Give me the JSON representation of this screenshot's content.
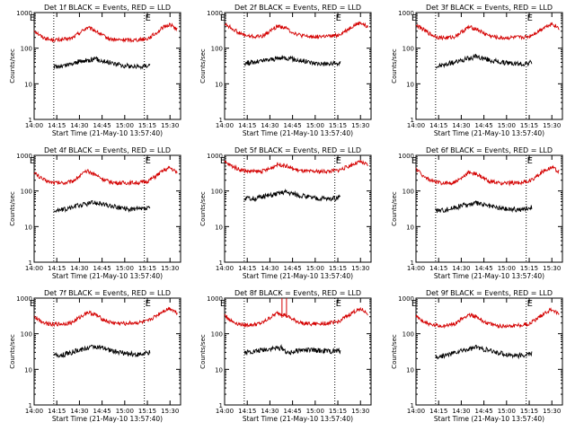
{
  "figure": {
    "background": "#ffffff"
  },
  "chart_data": [
    {
      "type": "line",
      "title": "Det 1f BLACK = Events, RED = LLD",
      "xlabel": "Start Time (21-May-10 13:57:40)",
      "ylabel": "Counts/sec",
      "yscale": "log",
      "ylim": [
        1,
        1000
      ],
      "x_ticks": [
        "14:00",
        "14:15",
        "14:30",
        "14:45",
        "15:00",
        "15:15",
        "15:30"
      ],
      "y_ticks": [
        "1",
        "10",
        "100",
        "1000"
      ],
      "markers": [
        "E",
        "E"
      ],
      "vlines": [
        "14:13",
        "15:13"
      ],
      "series": [
        {
          "color": "#d40000",
          "x": [
            "14:00",
            "14:05",
            "14:10",
            "14:15",
            "14:20",
            "14:25",
            "14:30",
            "14:35",
            "14:40",
            "14:45",
            "14:50",
            "14:55",
            "15:00",
            "15:05",
            "15:10",
            "15:15",
            "15:20",
            "15:25",
            "15:30",
            "15:35"
          ],
          "values": [
            320,
            210,
            175,
            170,
            175,
            190,
            270,
            380,
            320,
            230,
            180,
            170,
            172,
            170,
            175,
            185,
            250,
            370,
            470,
            330
          ]
        },
        {
          "color": "#000000",
          "x": [
            "14:13",
            "14:20",
            "14:30",
            "14:40",
            "14:50",
            "15:00",
            "15:10",
            "15:17"
          ],
          "values": [
            30,
            32,
            42,
            50,
            40,
            32,
            30,
            35
          ]
        }
      ]
    },
    {
      "type": "line",
      "title": "Det 2f BLACK = Events, RED = LLD",
      "xlabel": "Start Time (21-May-10 13:57:40)",
      "ylabel": "Counts/sec",
      "yscale": "log",
      "ylim": [
        1,
        1000
      ],
      "x_ticks": [
        "14:00",
        "14:15",
        "14:30",
        "14:45",
        "15:00",
        "15:15",
        "15:30"
      ],
      "y_ticks": [
        "1",
        "10",
        "100",
        "1000"
      ],
      "markers": [
        "E",
        "E"
      ],
      "vlines": [
        "14:13",
        "15:13"
      ],
      "series": [
        {
          "color": "#d40000",
          "x": [
            "14:00",
            "14:05",
            "14:10",
            "14:15",
            "14:20",
            "14:25",
            "14:30",
            "14:35",
            "14:40",
            "14:45",
            "14:50",
            "14:55",
            "15:00",
            "15:05",
            "15:10",
            "15:15",
            "15:20",
            "15:25",
            "15:30",
            "15:35"
          ],
          "values": [
            480,
            360,
            260,
            220,
            210,
            220,
            300,
            420,
            380,
            280,
            230,
            210,
            210,
            215,
            215,
            230,
            300,
            420,
            520,
            380
          ]
        },
        {
          "color": "#000000",
          "x": [
            "14:13",
            "14:20",
            "14:30",
            "14:40",
            "14:50",
            "15:00",
            "15:10",
            "15:17"
          ],
          "values": [
            38,
            40,
            48,
            55,
            45,
            38,
            36,
            38
          ]
        }
      ]
    },
    {
      "type": "line",
      "title": "Det 3f BLACK = Events, RED = LLD",
      "xlabel": "Start Time (21-May-10 13:57:40)",
      "ylabel": "Counts/sec",
      "yscale": "log",
      "ylim": [
        1,
        1000
      ],
      "x_ticks": [
        "14:00",
        "14:15",
        "14:30",
        "14:45",
        "15:00",
        "15:15",
        "15:30"
      ],
      "y_ticks": [
        "1",
        "10",
        "100",
        "1000"
      ],
      "markers": [
        "E",
        "E"
      ],
      "vlines": [
        "14:13",
        "15:13"
      ],
      "series": [
        {
          "color": "#d40000",
          "x": [
            "14:00",
            "14:05",
            "14:10",
            "14:15",
            "14:20",
            "14:25",
            "14:30",
            "14:35",
            "14:40",
            "14:45",
            "14:50",
            "14:55",
            "15:00",
            "15:05",
            "15:10",
            "15:15",
            "15:20",
            "15:25",
            "15:30",
            "15:35"
          ],
          "values": [
            450,
            330,
            240,
            200,
            195,
            205,
            280,
            390,
            350,
            260,
            215,
            195,
            195,
            200,
            200,
            215,
            280,
            390,
            490,
            360
          ]
        },
        {
          "color": "#000000",
          "x": [
            "14:13",
            "14:20",
            "14:30",
            "14:40",
            "14:50",
            "15:00",
            "15:10",
            "15:17"
          ],
          "values": [
            30,
            35,
            45,
            58,
            45,
            38,
            36,
            40
          ]
        }
      ]
    },
    {
      "type": "line",
      "title": "Det 4f BLACK = Events, RED = LLD",
      "xlabel": "Start Time (21-May-10 13:57:40)",
      "ylabel": "Counts/sec",
      "yscale": "log",
      "ylim": [
        1,
        1000
      ],
      "x_ticks": [
        "14:00",
        "14:15",
        "14:30",
        "14:45",
        "15:00",
        "15:15",
        "15:30"
      ],
      "y_ticks": [
        "1",
        "10",
        "100",
        "1000"
      ],
      "markers": [
        "E",
        "E"
      ],
      "vlines": [
        "14:13",
        "15:13"
      ],
      "series": [
        {
          "color": "#d40000",
          "x": [
            "14:00",
            "14:05",
            "14:10",
            "14:15",
            "14:20",
            "14:25",
            "14:30",
            "14:35",
            "14:40",
            "14:45",
            "14:50",
            "14:55",
            "15:00",
            "15:05",
            "15:10",
            "15:15",
            "15:20",
            "15:25",
            "15:30",
            "15:35"
          ],
          "values": [
            330,
            220,
            180,
            170,
            170,
            185,
            260,
            360,
            300,
            220,
            180,
            168,
            168,
            170,
            172,
            185,
            250,
            360,
            450,
            320
          ]
        },
        {
          "color": "#000000",
          "x": [
            "14:13",
            "14:20",
            "14:30",
            "14:40",
            "14:50",
            "15:00",
            "15:10",
            "15:17"
          ],
          "values": [
            28,
            30,
            40,
            48,
            38,
            32,
            30,
            33
          ]
        }
      ]
    },
    {
      "type": "line",
      "title": "Det 5f BLACK = Events, RED = LLD",
      "xlabel": "Start Time (21-May-10 13:57:40)",
      "ylabel": "Counts/sec",
      "yscale": "log",
      "ylim": [
        1,
        1000
      ],
      "x_ticks": [
        "14:00",
        "14:15",
        "14:30",
        "14:45",
        "15:00",
        "15:15",
        "15:30"
      ],
      "y_ticks": [
        "1",
        "10",
        "100",
        "1000"
      ],
      "markers": [
        "E",
        "E"
      ],
      "vlines": [
        "14:13",
        "15:13"
      ],
      "series": [
        {
          "color": "#d40000",
          "x": [
            "14:00",
            "14:05",
            "14:10",
            "14:15",
            "14:20",
            "14:25",
            "14:30",
            "14:35",
            "14:40",
            "14:45",
            "14:50",
            "14:55",
            "15:00",
            "15:05",
            "15:10",
            "15:15",
            "15:20",
            "15:25",
            "15:30",
            "15:35"
          ],
          "values": [
            640,
            500,
            400,
            360,
            350,
            360,
            420,
            560,
            520,
            420,
            370,
            350,
            350,
            355,
            360,
            380,
            450,
            560,
            660,
            520
          ]
        },
        {
          "color": "#000000",
          "x": [
            "14:13",
            "14:20",
            "14:30",
            "14:40",
            "14:50",
            "15:00",
            "15:10",
            "15:17"
          ],
          "values": [
            60,
            62,
            75,
            95,
            75,
            62,
            60,
            65
          ]
        }
      ]
    },
    {
      "type": "line",
      "title": "Det 6f BLACK = Events, RED = LLD",
      "xlabel": "Start Time (21-May-10 13:57:40)",
      "ylabel": "Counts/sec",
      "yscale": "log",
      "ylim": [
        1,
        1000
      ],
      "x_ticks": [
        "14:00",
        "14:15",
        "14:30",
        "14:45",
        "15:00",
        "15:15",
        "15:30"
      ],
      "y_ticks": [
        "1",
        "10",
        "100",
        "1000"
      ],
      "markers": [
        "E",
        "E"
      ],
      "vlines": [
        "14:13",
        "15:13"
      ],
      "series": [
        {
          "color": "#d40000",
          "x": [
            "14:00",
            "14:05",
            "14:10",
            "14:15",
            "14:20",
            "14:25",
            "14:30",
            "14:35",
            "14:40",
            "14:45",
            "14:50",
            "14:55",
            "15:00",
            "15:05",
            "15:10",
            "15:15",
            "15:20",
            "15:25",
            "15:30",
            "15:35"
          ],
          "values": [
            420,
            260,
            190,
            170,
            168,
            172,
            220,
            340,
            300,
            220,
            180,
            165,
            165,
            170,
            172,
            185,
            260,
            380,
            470,
            340
          ]
        },
        {
          "color": "#000000",
          "x": [
            "14:13",
            "14:20",
            "14:30",
            "14:40",
            "14:50",
            "15:00",
            "15:10",
            "15:17"
          ],
          "values": [
            28,
            30,
            38,
            45,
            36,
            31,
            30,
            36
          ]
        }
      ]
    },
    {
      "type": "line",
      "title": "Det 7f BLACK = Events, RED = LLD",
      "xlabel": "Start Time (21-May-10 13:57:40)",
      "ylabel": "Counts/sec",
      "yscale": "log",
      "ylim": [
        1,
        1000
      ],
      "x_ticks": [
        "14:00",
        "14:15",
        "14:30",
        "14:45",
        "15:00",
        "15:15",
        "15:30"
      ],
      "y_ticks": [
        "1",
        "10",
        "100",
        "1000"
      ],
      "markers": [
        "E",
        "E"
      ],
      "vlines": [
        "14:13",
        "15:13"
      ],
      "series": [
        {
          "color": "#d40000",
          "x": [
            "14:00",
            "14:05",
            "14:10",
            "14:15",
            "14:20",
            "14:25",
            "14:30",
            "14:35",
            "14:40",
            "14:45",
            "14:50",
            "14:55",
            "15:00",
            "15:05",
            "15:10",
            "15:15",
            "15:20",
            "15:25",
            "15:30",
            "15:35"
          ],
          "values": [
            300,
            220,
            190,
            185,
            190,
            205,
            280,
            400,
            350,
            260,
            210,
            195,
            195,
            200,
            205,
            220,
            300,
            420,
            520,
            380
          ]
        },
        {
          "color": "#000000",
          "x": [
            "14:13",
            "14:20",
            "14:30",
            "14:40",
            "14:50",
            "15:00",
            "15:10",
            "15:17"
          ],
          "values": [
            24,
            26,
            35,
            45,
            35,
            28,
            26,
            30
          ]
        }
      ]
    },
    {
      "type": "line",
      "title": "Det 8f BLACK = Events, RED = LLD",
      "xlabel": "Start Time (21-May-10 13:57:40)",
      "ylabel": "Counts/sec",
      "yscale": "log",
      "ylim": [
        1,
        1000
      ],
      "x_ticks": [
        "14:00",
        "14:15",
        "14:30",
        "14:45",
        "15:00",
        "15:15",
        "15:30"
      ],
      "y_ticks": [
        "1",
        "10",
        "100",
        "1000"
      ],
      "markers": [
        "E",
        "E"
      ],
      "vlines": [
        "14:13",
        "15:13"
      ],
      "series": [
        {
          "color": "#d40000",
          "x": [
            "14:00",
            "14:05",
            "14:10",
            "14:15",
            "14:20",
            "14:25",
            "14:30",
            "14:35",
            "14:40",
            "14:45",
            "14:50",
            "14:55",
            "15:00",
            "15:05",
            "15:10",
            "15:15",
            "15:20",
            "15:25",
            "15:30",
            "15:35"
          ],
          "values": [
            330,
            220,
            185,
            175,
            180,
            200,
            280,
            380,
            340,
            250,
            205,
            190,
            190,
            195,
            200,
            215,
            290,
            400,
            500,
            360
          ],
          "spikes": [
            {
              "x": "14:38",
              "value": 1000
            },
            {
              "x": "14:41",
              "value": 1000
            }
          ]
        },
        {
          "color": "#000000",
          "x": [
            "14:13",
            "14:20",
            "14:30",
            "14:38",
            "14:42",
            "14:50",
            "15:00",
            "15:10",
            "15:17"
          ],
          "values": [
            30,
            32,
            38,
            40,
            28,
            35,
            34,
            32,
            33
          ]
        }
      ]
    },
    {
      "type": "line",
      "title": "Det 9f BLACK = Events, RED = LLD",
      "xlabel": "Start Time (21-May-10 13:57:40)",
      "ylabel": "Counts/sec",
      "yscale": "log",
      "ylim": [
        1,
        1000
      ],
      "x_ticks": [
        "14:00",
        "14:15",
        "14:30",
        "14:45",
        "15:00",
        "15:15",
        "15:30"
      ],
      "y_ticks": [
        "1",
        "10",
        "100",
        "1000"
      ],
      "markers": [
        "E",
        "E"
      ],
      "vlines": [
        "14:13",
        "15:13"
      ],
      "series": [
        {
          "color": "#d40000",
          "x": [
            "14:00",
            "14:05",
            "14:10",
            "14:15",
            "14:20",
            "14:25",
            "14:30",
            "14:35",
            "14:40",
            "14:45",
            "14:50",
            "14:55",
            "15:00",
            "15:05",
            "15:10",
            "15:15",
            "15:20",
            "15:25",
            "15:30",
            "15:35"
          ],
          "values": [
            300,
            220,
            175,
            165,
            170,
            185,
            250,
            350,
            300,
            220,
            180,
            165,
            165,
            170,
            175,
            190,
            260,
            380,
            480,
            340
          ]
        },
        {
          "color": "#000000",
          "x": [
            "14:13",
            "14:20",
            "14:30",
            "14:40",
            "14:50",
            "15:00",
            "15:10",
            "15:17"
          ],
          "values": [
            22,
            25,
            33,
            42,
            32,
            26,
            24,
            28
          ]
        }
      ]
    }
  ]
}
